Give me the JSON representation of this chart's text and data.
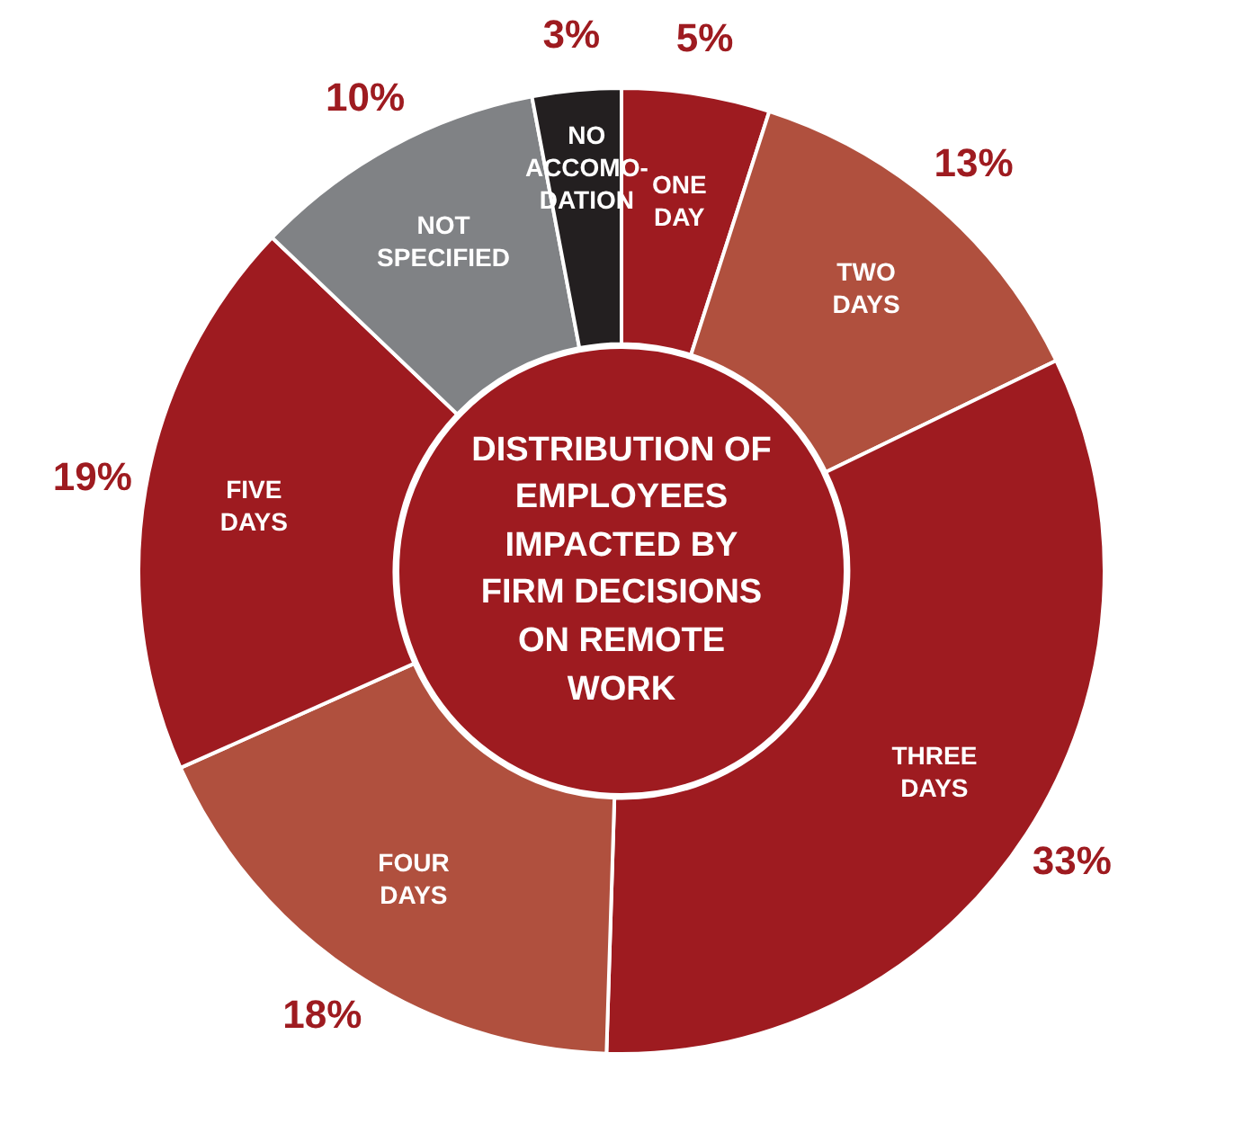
{
  "chart_data": {
    "type": "donut",
    "title": "DISTRIBUTION OF EMPLOYEES IMPACTED BY FIRM DECISIONS ON REMOTE WORK",
    "categories": [
      "ONE DAY",
      "TWO DAYS",
      "THREE DAYS",
      "FOUR DAYS",
      "FIVE DAYS",
      "NOT SPECIFIED",
      "NO ACCOMO-DATION"
    ],
    "values": [
      5,
      13,
      33,
      18,
      19,
      10,
      3
    ],
    "value_labels": [
      "5%",
      "13%",
      "33%",
      "18%",
      "19%",
      "10%",
      "3%"
    ],
    "colors": [
      "#9e1b20",
      "#b0503e",
      "#9e1b20",
      "#b0503e",
      "#9e1b20",
      "#808285",
      "#231f20"
    ],
    "legend": false
  }
}
